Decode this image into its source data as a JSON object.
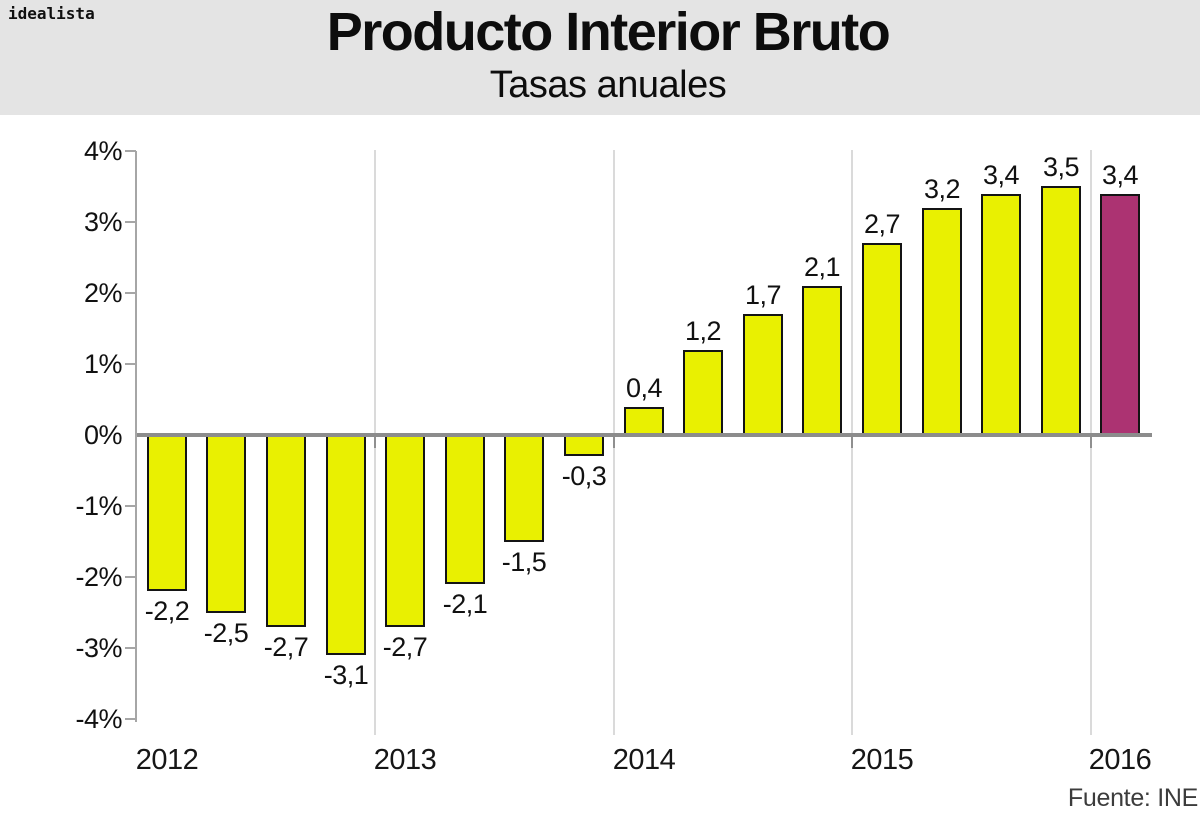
{
  "logo": "idealista",
  "header": {
    "title": "Producto Interior Bruto",
    "subtitle": "Tasas anuales"
  },
  "source_label": "Fuente: INE",
  "colors": {
    "header_bg": "#E4E4E4",
    "bar_fill": "#E9F001",
    "bar_highlight_fill": "#AC3372",
    "bar_outline": "#141414",
    "grid": "#DADADA",
    "axis": "#A6A6A6",
    "zero_line": "#8C8C8C"
  },
  "chart_data": {
    "type": "bar",
    "title": "Producto Interior Bruto",
    "subtitle": "Tasas anuales",
    "unit": "%",
    "ylim": [
      -4,
      4
    ],
    "grid": "vertical separators between year groups; horizontal zero axis line",
    "legend": "none",
    "yticks": [
      {
        "value": 4,
        "label": "4%"
      },
      {
        "value": 3,
        "label": "3%"
      },
      {
        "value": 2,
        "label": "2%"
      },
      {
        "value": 1,
        "label": "1%"
      },
      {
        "value": 0,
        "label": "0%"
      },
      {
        "value": -1,
        "label": "-1%"
      },
      {
        "value": -2,
        "label": "-2%"
      },
      {
        "value": -3,
        "label": "-3%"
      },
      {
        "value": -4,
        "label": "-4%"
      }
    ],
    "years": [
      "2012",
      "2013",
      "2014",
      "2015",
      "2016"
    ],
    "bars": [
      {
        "year": "2012",
        "value": -2.2,
        "label": "-2,2",
        "highlight": false
      },
      {
        "year": "2012",
        "value": -2.5,
        "label": "-2,5",
        "highlight": false
      },
      {
        "year": "2012",
        "value": -2.7,
        "label": "-2,7",
        "highlight": false
      },
      {
        "year": "2012",
        "value": -3.1,
        "label": "-3,1",
        "highlight": false
      },
      {
        "year": "2013",
        "value": -2.7,
        "label": "-2,7",
        "highlight": false
      },
      {
        "year": "2013",
        "value": -2.1,
        "label": "-2,1",
        "highlight": false
      },
      {
        "year": "2013",
        "value": -1.5,
        "label": "-1,5",
        "highlight": false
      },
      {
        "year": "2013",
        "value": -0.3,
        "label": "-0,3",
        "highlight": false
      },
      {
        "year": "2014",
        "value": 0.4,
        "label": "0,4",
        "highlight": false
      },
      {
        "year": "2014",
        "value": 1.2,
        "label": "1,2",
        "highlight": false
      },
      {
        "year": "2014",
        "value": 1.7,
        "label": "1,7",
        "highlight": false
      },
      {
        "year": "2014",
        "value": 2.1,
        "label": "2,1",
        "highlight": false
      },
      {
        "year": "2015",
        "value": 2.7,
        "label": "2,7",
        "highlight": false
      },
      {
        "year": "2015",
        "value": 3.2,
        "label": "3,2",
        "highlight": false
      },
      {
        "year": "2015",
        "value": 3.4,
        "label": "3,4",
        "highlight": false
      },
      {
        "year": "2015",
        "value": 3.5,
        "label": "3,5",
        "highlight": false
      },
      {
        "year": "2016",
        "value": 3.4,
        "label": "3,4",
        "highlight": true
      }
    ],
    "source": "Fuente: INE"
  }
}
